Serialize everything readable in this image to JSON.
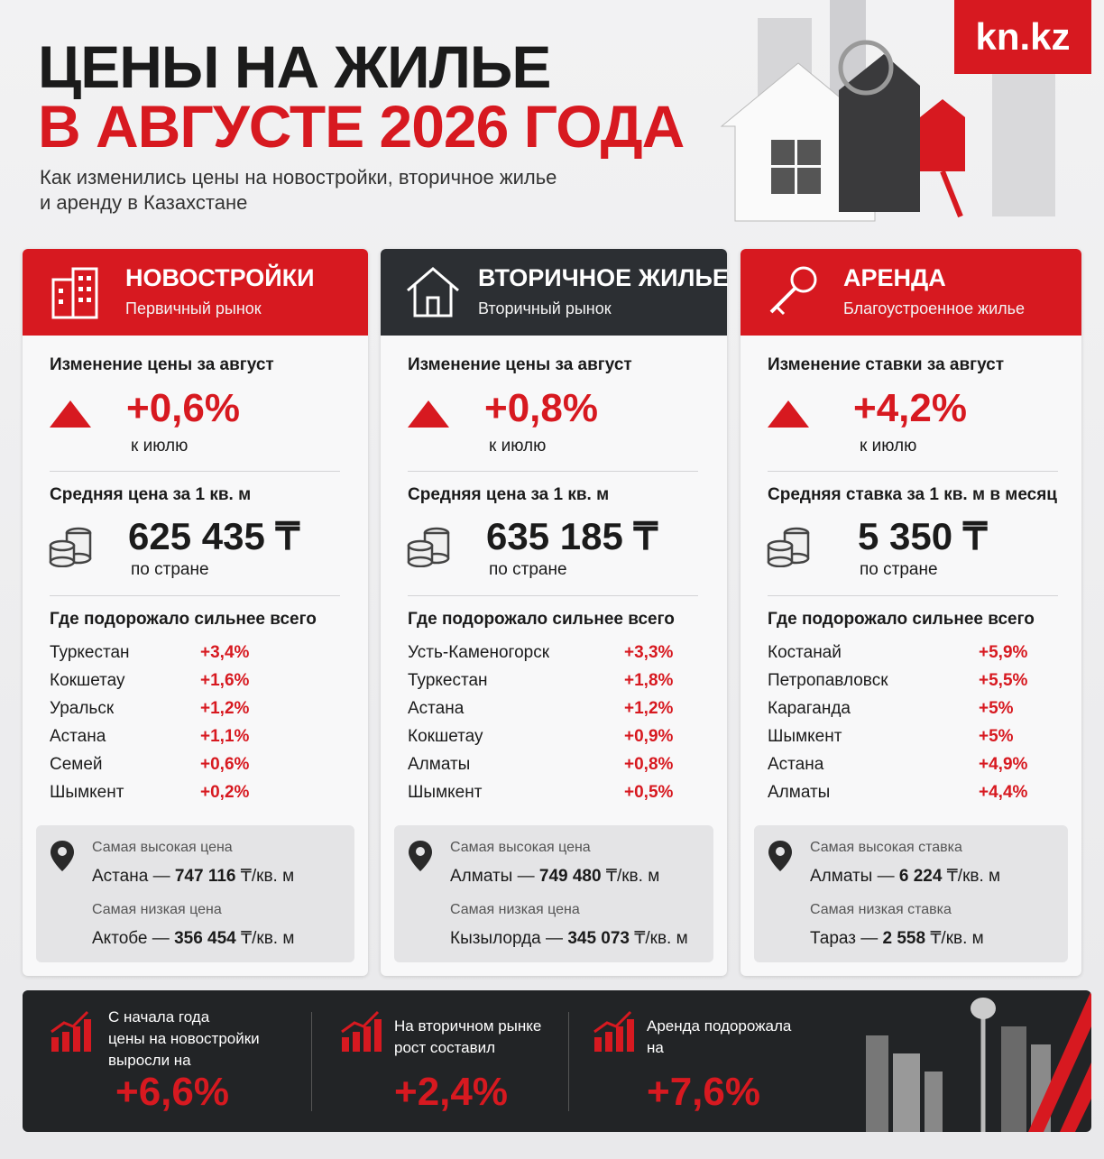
{
  "header": {
    "title_line1": "ЦЕНЫ НА ЖИЛЬЕ",
    "title_line2": "В АВГУСТЕ 2026 ГОДА",
    "subtitle_line1": "Как изменились цены на новостройки, вторичное жилье",
    "subtitle_line2": "и аренду в Казахстане",
    "logo": "kn.kz"
  },
  "columns": [
    {
      "title": "НОВОСТРОЙКИ",
      "subtitle": "Первичный рынок",
      "change_label": "Изменение цены за август",
      "change": "+0,6%",
      "change_note": "к июлю",
      "avg_label": "Средняя цена за 1 кв. м",
      "avg": "625 435 ₸",
      "avg_note": "по стране",
      "top_label": "Где подорожало сильнее всего",
      "top": [
        [
          "Туркестан",
          "+3,4%"
        ],
        [
          "Кокшетау",
          "+1,6%"
        ],
        [
          "Уральск",
          "+1,2%"
        ],
        [
          "Астана",
          "+1,1%"
        ],
        [
          "Семей",
          "+0,6%"
        ],
        [
          "Шымкент",
          "+0,2%"
        ]
      ],
      "high_label": "Самая высокая цена",
      "high_city": "Астана —",
      "high_value": "747 116",
      "high_unit": "₸/кв. м",
      "low_label": "Самая низкая цена",
      "low_city": "Актобе —",
      "low_value": "356 454",
      "low_unit": "₸/кв. м"
    },
    {
      "title": "ВТОРИЧНОЕ ЖИЛЬЕ",
      "subtitle": "Вторичный рынок",
      "change_label": "Изменение цены за август",
      "change": "+0,8%",
      "change_note": "к июлю",
      "avg_label": "Средняя цена за 1 кв. м",
      "avg": "635 185 ₸",
      "avg_note": "по стране",
      "top_label": "Где подорожало сильнее всего",
      "top": [
        [
          "Усть-Каменогорск",
          "+3,3%"
        ],
        [
          "Туркестан",
          "+1,8%"
        ],
        [
          "Астана",
          "+1,2%"
        ],
        [
          "Кокшетау",
          "+0,9%"
        ],
        [
          "Алматы",
          "+0,8%"
        ],
        [
          "Шымкент",
          "+0,5%"
        ]
      ],
      "high_label": "Самая высокая цена",
      "high_city": "Алматы —",
      "high_value": "749 480",
      "high_unit": "₸/кв. м",
      "low_label": "Самая низкая цена",
      "low_city": "Кызылорда —",
      "low_value": "345 073",
      "low_unit": "₸/кв. м"
    },
    {
      "title": "АРЕНДА",
      "subtitle": "Благоустроенное жилье",
      "change_label": "Изменение ставки за август",
      "change": "+4,2%",
      "change_note": "к июлю",
      "avg_label": "Средняя ставка за 1 кв. м в месяц",
      "avg": "5 350 ₸",
      "avg_note": "по стране",
      "top_label": "Где подорожало сильнее всего",
      "top": [
        [
          "Костанай",
          "+5,9%"
        ],
        [
          "Петропавловск",
          "+5,5%"
        ],
        [
          "Караганда",
          "+5%"
        ],
        [
          "Шымкент",
          "+5%"
        ],
        [
          "Астана",
          "+4,9%"
        ],
        [
          "Алматы",
          "+4,4%"
        ]
      ],
      "high_label": "Самая высокая ставка",
      "high_city": "Алматы —",
      "high_value": "6 224",
      "high_unit": "₸/кв. м",
      "low_label": "Самая низкая ставка",
      "low_city": "Тараз —",
      "low_value": "2 558",
      "low_unit": "₸/кв. м"
    }
  ],
  "footer": [
    {
      "text_lines": [
        "С начала года",
        "цены на новостройки",
        "выросли на"
      ],
      "value": "+6,6%"
    },
    {
      "text_lines": [
        "На вторичном рынке",
        "рост составил"
      ],
      "value": "+2,4%"
    },
    {
      "text_lines": [
        "Аренда подорожала",
        "на"
      ],
      "value": "+7,6%"
    }
  ]
}
